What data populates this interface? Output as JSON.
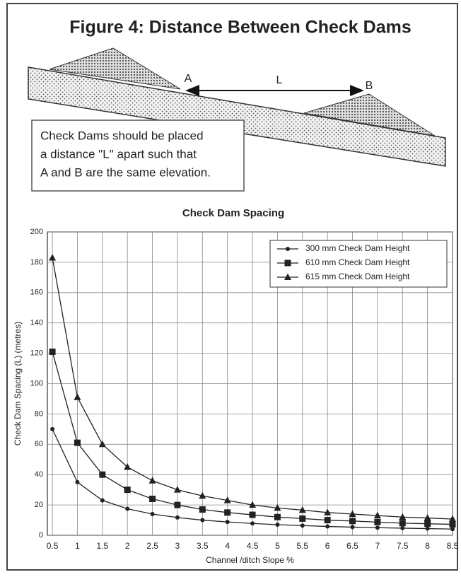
{
  "header": {
    "title": "Figure 4: Distance Between Check Dams"
  },
  "diagram": {
    "labels": [
      "A",
      "L",
      "B"
    ],
    "note": [
      "Check Dams should be placed",
      "a distance \"L\" apart such that",
      "A and B are the same elevation."
    ]
  },
  "chart_data": {
    "type": "line",
    "title": "Check Dam Spacing",
    "x_label": "Channel /ditch Slope %",
    "y_label": "Check Dam Spacing (L) (metres)",
    "x": [
      0.5,
      1,
      1.5,
      2,
      2.5,
      3,
      3.5,
      4,
      4.5,
      5,
      5.5,
      6,
      6.5,
      7,
      7.5,
      8,
      8.5
    ],
    "series": [
      {
        "name": "300 mm Check Dam Height",
        "color": "#222222",
        "marker": "circle",
        "values": [
          70,
          35,
          23,
          17.5,
          14,
          11.7,
          10,
          8.8,
          7.8,
          7,
          6.4,
          5.8,
          5.4,
          5,
          4.7,
          4.4,
          4.1
        ]
      },
      {
        "name": "610 mm Check Dam Height",
        "color": "#222222",
        "marker": "square",
        "values": [
          121,
          61,
          40,
          30,
          24,
          20,
          17,
          15,
          13.5,
          12,
          11,
          10,
          9.4,
          8.7,
          8,
          7.6,
          7.2
        ]
      },
      {
        "name": "615 mm Check Dam Height",
        "color": "#222222",
        "marker": "triangle",
        "values": [
          183,
          91,
          60,
          45,
          36,
          30,
          26,
          23,
          20,
          18,
          16.6,
          15,
          14,
          13,
          12,
          11.4,
          10.7
        ]
      }
    ],
    "xlim": [
      0.4,
      8.5
    ],
    "ylim": [
      0,
      200
    ],
    "xticks": [
      0.5,
      1,
      1.5,
      2,
      2.5,
      3,
      3.5,
      4,
      4.5,
      5,
      5.5,
      6,
      6.5,
      7,
      7.5,
      8,
      8.5
    ],
    "yticks": [
      0,
      20,
      40,
      60,
      80,
      100,
      120,
      140,
      160,
      180,
      200
    ],
    "grid": true,
    "legend": "top-right"
  }
}
